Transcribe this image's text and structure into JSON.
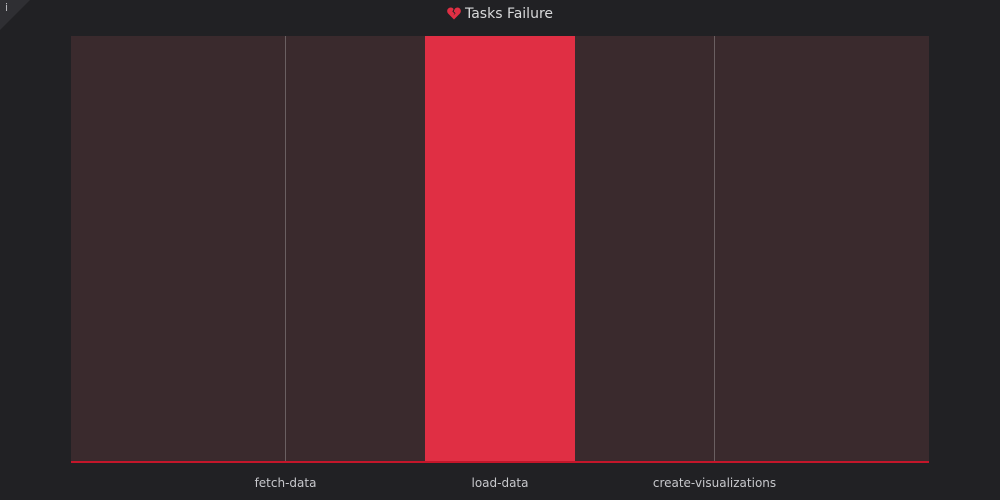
{
  "panel": {
    "title": "Tasks Failure",
    "title_icon": "broken-heart-icon",
    "info_icon": "info-icon",
    "info_glyph": "i"
  },
  "colors": {
    "background": "#212124",
    "plot_background": "#3a2a2d",
    "bar": "#e02f44",
    "axis_line": "#c4162a",
    "gridline": "#6a5f61",
    "text": "#d8d9da"
  },
  "chart_data": {
    "type": "bar",
    "title": "Tasks Failure",
    "categories": [
      "fetch-data",
      "load-data",
      "create-visualizations"
    ],
    "values": [
      0,
      1,
      0
    ],
    "xlabel": "",
    "ylabel": "",
    "ylim": [
      0,
      1
    ],
    "legend": "none",
    "grid": "vertical"
  }
}
